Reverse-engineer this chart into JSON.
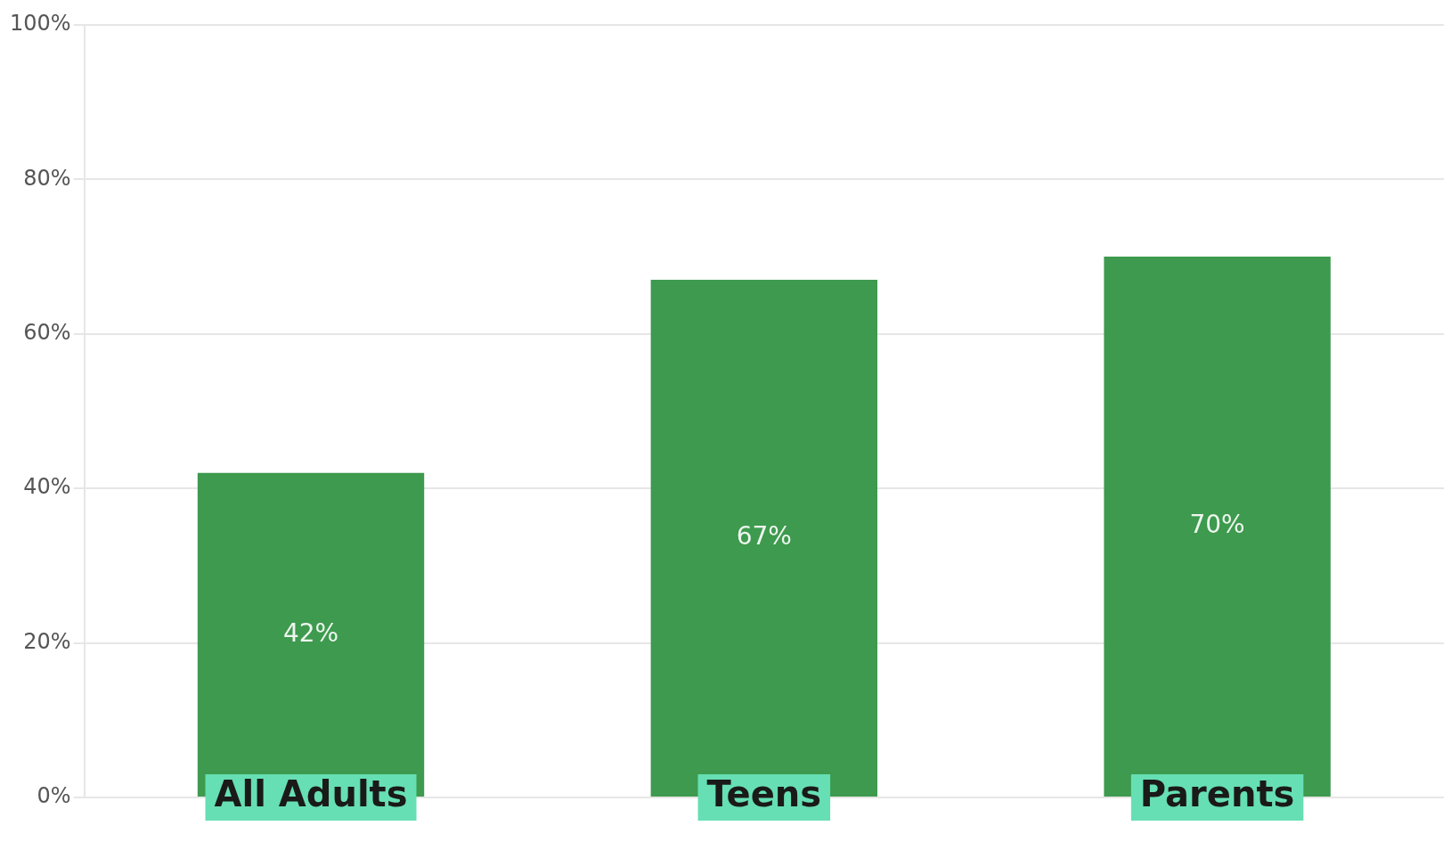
{
  "chart_data": {
    "type": "bar",
    "categories": [
      "All Adults",
      "Teens",
      "Parents"
    ],
    "values": [
      42,
      67,
      70
    ],
    "color": "#3d9a4e",
    "ylim": [
      0,
      100
    ],
    "yticks": [
      {
        "value": 0,
        "label": "0%"
      },
      {
        "value": 20,
        "label": "20%"
      },
      {
        "value": 40,
        "label": "40%"
      },
      {
        "value": 60,
        "label": "60%"
      },
      {
        "value": 80,
        "label": "80%"
      },
      {
        "value": 100,
        "label": "100%"
      }
    ],
    "grid": "y",
    "legend": false,
    "data_labels": true,
    "value_labels": [
      "42%",
      "67%",
      "70%"
    ]
  }
}
